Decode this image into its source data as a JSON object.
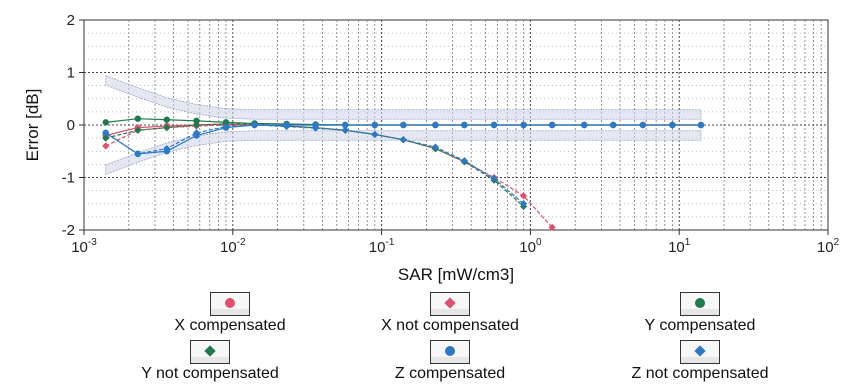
{
  "chart_data": {
    "type": "line",
    "title": "",
    "xlabel": "SAR [mW/cm3]",
    "ylabel": "Error [dB]",
    "xscale": "log",
    "xlim": [
      0.001,
      100
    ],
    "ylim": [
      -2,
      2
    ],
    "x_ticks": [
      {
        "base": "10",
        "exp": "-3",
        "value": 0.001
      },
      {
        "base": "10",
        "exp": "-2",
        "value": 0.01
      },
      {
        "base": "10",
        "exp": "-1",
        "value": 0.1
      },
      {
        "base": "10",
        "exp": "0",
        "value": 1
      },
      {
        "base": "10",
        "exp": "1",
        "value": 10
      },
      {
        "base": "10",
        "exp": "2",
        "value": 100
      }
    ],
    "y_ticks": [
      "2",
      "1",
      "0",
      "-1",
      "-2"
    ],
    "y_tick_values": [
      2,
      1,
      0,
      -1,
      -2
    ],
    "grid": true,
    "legend_position": "bottom",
    "uncertainty_band": {
      "x": [
        0.0014,
        0.0023,
        0.0036,
        0.0057,
        0.009,
        0.014,
        0.023,
        0.036,
        0.057,
        0.09,
        0.14,
        0.23,
        0.36,
        0.57,
        0.9,
        1.4,
        2.3,
        3.6,
        5.7,
        9,
        14
      ],
      "upper": [
        0.85,
        0.62,
        0.43,
        0.3,
        0.22,
        0.2,
        0.2,
        0.2,
        0.2,
        0.2,
        0.2,
        0.2,
        0.2,
        0.2,
        0.2,
        0.2,
        0.2,
        0.2,
        0.2,
        0.2,
        0.2
      ],
      "lower": [
        -0.85,
        -0.62,
        -0.43,
        -0.3,
        -0.22,
        -0.2,
        -0.2,
        -0.2,
        -0.2,
        -0.2,
        -0.2,
        -0.2,
        -0.2,
        -0.2,
        -0.2,
        -0.2,
        -0.2,
        -0.2,
        -0.2,
        -0.2,
        -0.2
      ]
    },
    "series": [
      {
        "name": "X compensated",
        "color": "#e0506e",
        "marker": "circle",
        "x": [
          0.0014,
          0.0023,
          0.0036,
          0.0057,
          0.009,
          0.014,
          0.023,
          0.036,
          0.057,
          0.09,
          0.14,
          0.23,
          0.36,
          0.57,
          0.9,
          1.4,
          2.3,
          3.6,
          5.7,
          9,
          14
        ],
        "y": [
          -0.2,
          -0.05,
          -0.02,
          0.0,
          0.02,
          0.0,
          0.0,
          0.0,
          0.0,
          0.0,
          0.0,
          0.0,
          0.0,
          0.0,
          0.0,
          0.0,
          0.0,
          0.0,
          0.0,
          0.0,
          0.0
        ]
      },
      {
        "name": "X not compensated",
        "color": "#e0506e",
        "marker": "diamond",
        "x": [
          0.0014,
          0.0023,
          0.0036,
          0.0057,
          0.009,
          0.014,
          0.023,
          0.036,
          0.057,
          0.09,
          0.14,
          0.23,
          0.36,
          0.57,
          0.9,
          1.4
        ],
        "y": [
          -0.4,
          -0.1,
          -0.05,
          -0.02,
          0.0,
          0.0,
          -0.02,
          -0.05,
          -0.1,
          -0.18,
          -0.28,
          -0.45,
          -0.7,
          -1.0,
          -1.35,
          -1.95
        ]
      },
      {
        "name": "Y compensated",
        "color": "#1e7a4a",
        "marker": "circle",
        "x": [
          0.0014,
          0.0023,
          0.0036,
          0.0057,
          0.009,
          0.014,
          0.023,
          0.036,
          0.057,
          0.09,
          0.14,
          0.23,
          0.36,
          0.57,
          0.9,
          1.4,
          2.3,
          3.6,
          5.7,
          9,
          14
        ],
        "y": [
          0.05,
          0.12,
          0.1,
          0.08,
          0.05,
          0.03,
          0.02,
          0.01,
          0.0,
          0.0,
          0.0,
          0.0,
          0.0,
          0.0,
          0.0,
          0.0,
          0.0,
          0.0,
          0.0,
          0.0,
          0.0
        ]
      },
      {
        "name": "Y not compensated",
        "color": "#1e7a4a",
        "marker": "diamond",
        "x": [
          0.0014,
          0.0023,
          0.0036,
          0.0057,
          0.009,
          0.014,
          0.023,
          0.036,
          0.057,
          0.09,
          0.14,
          0.23,
          0.36,
          0.57,
          0.9
        ],
        "y": [
          -0.25,
          -0.1,
          -0.05,
          0.0,
          0.02,
          0.02,
          -0.02,
          -0.05,
          -0.1,
          -0.18,
          -0.28,
          -0.45,
          -0.7,
          -1.05,
          -1.55
        ]
      },
      {
        "name": "Z compensated",
        "color": "#2a7ac8",
        "marker": "circle",
        "x": [
          0.0014,
          0.0023,
          0.0036,
          0.0057,
          0.009,
          0.014,
          0.023,
          0.036,
          0.057,
          0.09,
          0.14,
          0.23,
          0.36,
          0.57,
          0.9,
          1.4,
          2.3,
          3.6,
          5.7,
          9,
          14
        ],
        "y": [
          -0.15,
          -0.55,
          -0.5,
          -0.2,
          -0.05,
          0.0,
          0.0,
          0.0,
          0.0,
          0.0,
          0.0,
          0.0,
          0.0,
          0.0,
          0.0,
          0.0,
          0.0,
          0.0,
          0.0,
          0.0,
          0.0
        ]
      },
      {
        "name": "Z not compensated",
        "color": "#2a7ac8",
        "marker": "diamond",
        "x": [
          0.0014,
          0.0023,
          0.0036,
          0.0057,
          0.009,
          0.014,
          0.023,
          0.036,
          0.057,
          0.09,
          0.14,
          0.23,
          0.36,
          0.57,
          0.9
        ],
        "y": [
          -0.15,
          -0.55,
          -0.45,
          -0.15,
          -0.03,
          0.0,
          -0.03,
          -0.06,
          -0.1,
          -0.18,
          -0.28,
          -0.42,
          -0.68,
          -1.02,
          -1.5
        ]
      }
    ]
  }
}
